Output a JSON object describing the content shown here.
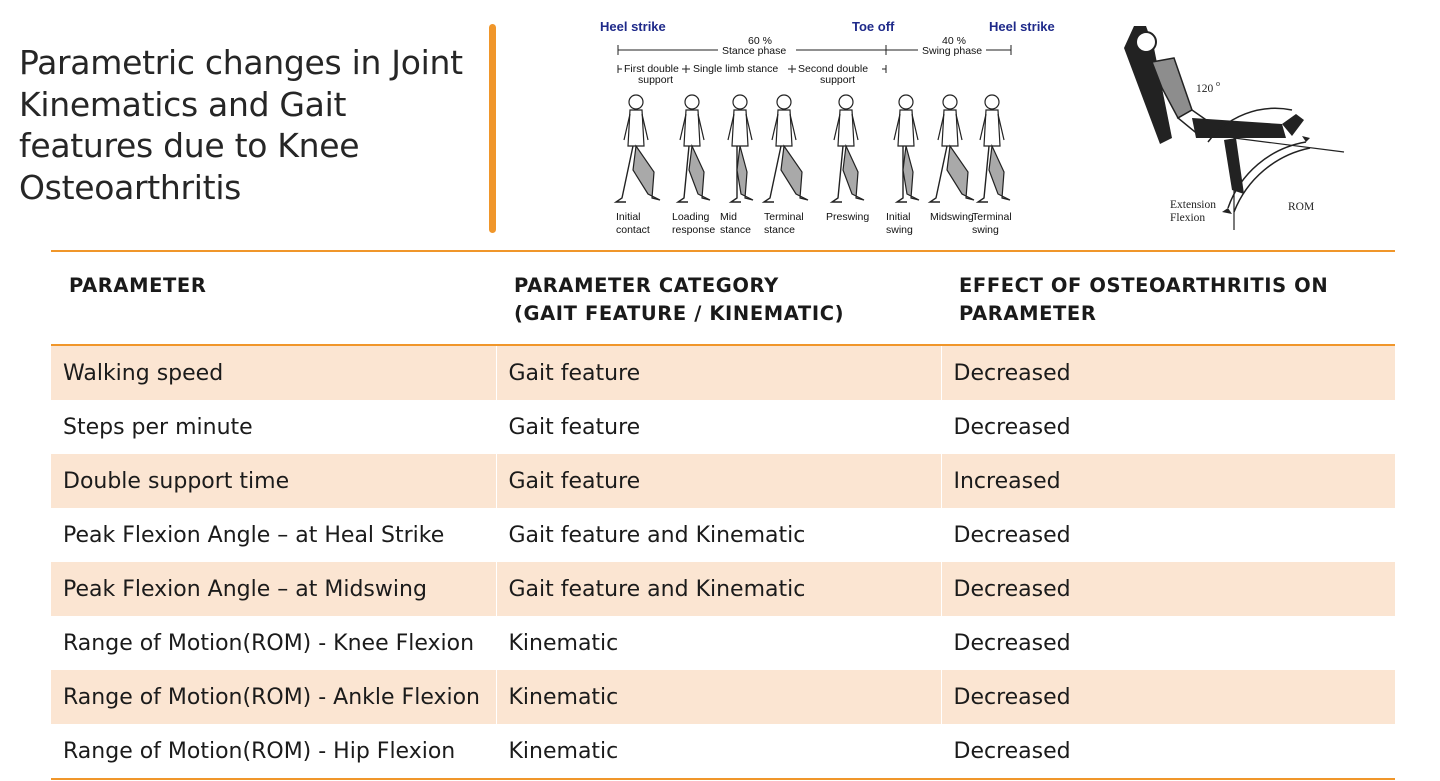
{
  "title": "Parametric changes in Joint Kinematics and Gait features due to Knee Osteoarthritis",
  "colors": {
    "accent": "#f0962a",
    "band": "#fbe5d2",
    "figure_fill": "#a9a9a9",
    "label_blue": "#1f2a8a"
  },
  "gait_figure": {
    "events": [
      "Heel strike",
      "Toe off",
      "Heel strike"
    ],
    "stance_pct": "60 %",
    "stance_label": "Stance phase",
    "swing_pct": "40 %",
    "swing_label": "Swing phase",
    "sub1": "First double",
    "sub1b": "support",
    "sub2": "Single limb stance",
    "sub3": "Second double",
    "sub3b": "support",
    "phases": [
      {
        "l1": "Initial",
        "l2": "contact"
      },
      {
        "l1": "Loading",
        "l2": "response"
      },
      {
        "l1": "Mid",
        "l2": "stance"
      },
      {
        "l1": "Terminal",
        "l2": "stance"
      },
      {
        "l1": "Preswing",
        "l2": ""
      },
      {
        "l1": "Initial",
        "l2": "swing"
      },
      {
        "l1": "Midswing",
        "l2": ""
      },
      {
        "l1": "Terminal",
        "l2": "swing"
      }
    ]
  },
  "rom_figure": {
    "angle": "120",
    "degree_mark": "o",
    "extension": "Extension",
    "flexion": "Flexion",
    "rom": "ROM"
  },
  "table": {
    "headers": [
      {
        "l1": "PARAMETER",
        "l2": ""
      },
      {
        "l1": "PARAMETER CATEGORY",
        "l2": "(GAIT FEATURE / KINEMATIC)"
      },
      {
        "l1": "EFFECT OF OSTEOARTHRITIS ON",
        "l2": "PARAMETER"
      }
    ],
    "rows": [
      [
        "Walking speed",
        "Gait feature",
        "Decreased"
      ],
      [
        "Steps per minute",
        "Gait feature",
        "Decreased"
      ],
      [
        "Double support time",
        "Gait feature",
        "Increased"
      ],
      [
        "Peak Flexion Angle – at Heal Strike",
        "Gait feature and Kinematic",
        "Decreased"
      ],
      [
        "Peak Flexion Angle – at Midswing",
        "Gait feature and Kinematic",
        "Decreased"
      ],
      [
        "Range of Motion(ROM) - Knee Flexion",
        "Kinematic",
        "Decreased"
      ],
      [
        "Range of Motion(ROM) - Ankle Flexion",
        "Kinematic",
        "Decreased"
      ],
      [
        "Range of Motion(ROM) - Hip Flexion",
        "Kinematic",
        "Decreased"
      ]
    ]
  }
}
